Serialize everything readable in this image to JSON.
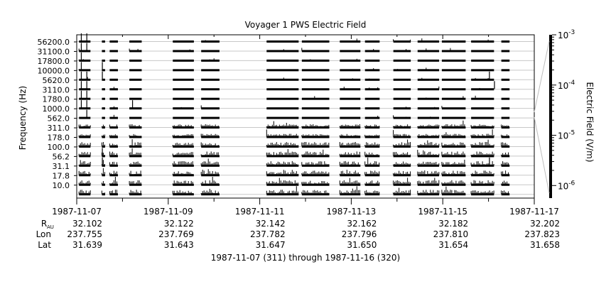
{
  "chart_data": {
    "type": "heatmap",
    "title": "Voyager 1 PWS Electric Field",
    "ylabel": "Frequency (Hz)",
    "colorbar_label": "Electric Field (V/m)",
    "colorbar_ticks": [
      {
        "base": "10",
        "exp": "-3",
        "value": 0.001
      },
      {
        "base": "10",
        "exp": "-4",
        "value": 0.0001
      },
      {
        "base": "10",
        "exp": "-5",
        "value": 1e-05
      },
      {
        "base": "10",
        "exp": "-6",
        "value": 1e-06
      }
    ],
    "colorbar_scale": "log",
    "y_ticks": [
      "56200.0",
      "31100.0",
      "17800.0",
      "10000.0",
      "5620.0",
      "3110.0",
      "1780.0",
      "1000.0",
      "562.0",
      "311.0",
      "178.0",
      "100.0",
      "56.2",
      "31.1",
      "17.8",
      "10.0"
    ],
    "channels": [
      "56200",
      "31100",
      "17800",
      "10000",
      "5620",
      "3110",
      "1780",
      "1000",
      "562",
      "311",
      "178",
      "100",
      "56.2",
      "31.1",
      "17.8",
      "10.0",
      "5.6"
    ],
    "x_range": [
      "1987-11-07",
      "1987-11-17"
    ],
    "x_ticks": [
      {
        "date": "1987-11-07",
        "rau": "32.102",
        "lon": "237.755",
        "lat": "31.639"
      },
      {
        "date": "1987-11-09",
        "rau": "32.122",
        "lon": "237.769",
        "lat": "31.643"
      },
      {
        "date": "1987-11-11",
        "rau": "32.142",
        "lon": "237.782",
        "lat": "31.647"
      },
      {
        "date": "1987-11-13",
        "rau": "32.162",
        "lon": "237.796",
        "lat": "31.650"
      },
      {
        "date": "1987-11-15",
        "rau": "32.182",
        "lon": "237.810",
        "lat": "31.654"
      },
      {
        "date": "1987-11-17",
        "rau": "32.202",
        "lon": "237.823",
        "lat": "31.658"
      }
    ],
    "ephemeris_labels": {
      "rau_main": "R",
      "rau_sub": "AU",
      "lon": "Lon",
      "lat": "Lat"
    },
    "time_range_label": "1987-11-07 (311) through 1987-11-16 (320)",
    "data_segments_days": [
      [
        0.05,
        0.3
      ],
      [
        0.55,
        0.62
      ],
      [
        0.72,
        0.9
      ],
      [
        1.15,
        1.42
      ],
      [
        2.1,
        2.56
      ],
      [
        2.72,
        3.12
      ],
      [
        4.15,
        4.85
      ],
      [
        4.92,
        5.52
      ],
      [
        5.75,
        6.2
      ],
      [
        6.3,
        6.62
      ],
      [
        6.92,
        7.3
      ],
      [
        7.45,
        7.92
      ],
      [
        7.98,
        8.5
      ],
      [
        8.62,
        9.12
      ],
      [
        9.28,
        9.46
      ]
    ],
    "strong_burst_days": [
      {
        "t": 0.1,
        "channels": [
          0,
          1,
          2,
          3,
          4,
          5,
          6,
          7
        ]
      },
      {
        "t": 0.22,
        "channels": [
          0,
          1,
          4,
          5,
          6,
          7,
          8
        ]
      },
      {
        "t": 0.56,
        "channels": [
          3,
          4,
          12,
          13
        ]
      },
      {
        "t": 1.22,
        "channels": [
          7
        ]
      },
      {
        "t": 9.02,
        "channels": [
          4,
          13
        ]
      },
      {
        "t": 9.13,
        "channels": [
          5
        ]
      }
    ]
  }
}
